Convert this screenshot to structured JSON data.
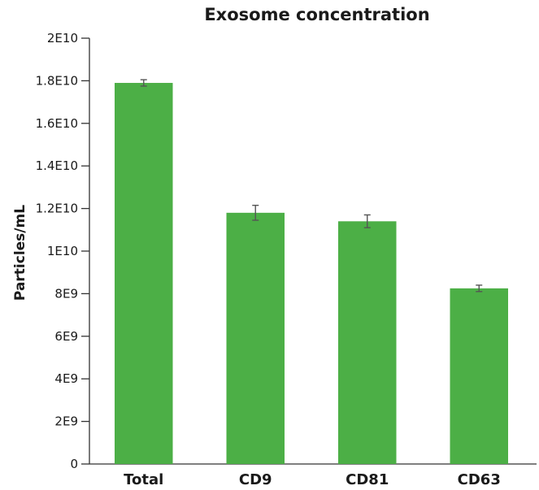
{
  "chart_data": {
    "type": "bar",
    "title": "Exosome concentration",
    "xlabel": "",
    "ylabel": "Particles/mL",
    "categories": [
      "Total",
      "CD9",
      "CD81",
      "CD63"
    ],
    "values": [
      17900000000,
      11800000000,
      11400000000,
      8250000000
    ],
    "errors": [
      150000000,
      350000000,
      300000000,
      150000000
    ],
    "ylim": [
      0,
      20000000000
    ],
    "yticks": [
      0,
      2000000000,
      4000000000,
      6000000000,
      8000000000,
      10000000000,
      12000000000,
      14000000000,
      16000000000,
      18000000000,
      20000000000
    ],
    "ytick_labels": [
      "0",
      "2E9",
      "4E9",
      "6E9",
      "8E9",
      "1E10",
      "1.2E10",
      "1.4E10",
      "1.6E10",
      "1.8E10",
      "2E10"
    ],
    "bar_color": "#4caf46",
    "error_color": "#555555",
    "axis_color": "#333333",
    "grid": false,
    "legend": "none"
  }
}
